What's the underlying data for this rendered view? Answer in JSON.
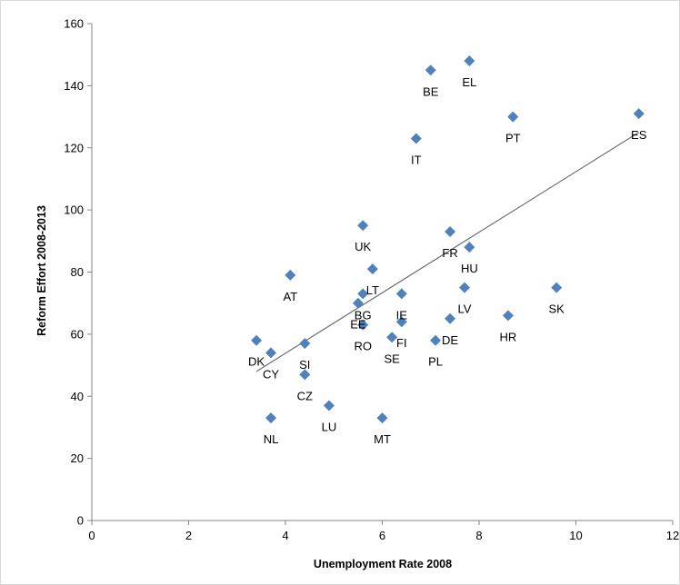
{
  "chart_data": {
    "type": "scatter",
    "title": "",
    "xlabel": "Unemployment Rate 2008",
    "ylabel": "Reform Effort 2008-2013",
    "xlim": [
      0,
      12
    ],
    "ylim": [
      0,
      160
    ],
    "x_ticks": [
      0,
      2,
      4,
      6,
      8,
      10,
      12
    ],
    "y_ticks": [
      0,
      20,
      40,
      60,
      80,
      100,
      120,
      140,
      160
    ],
    "grid": false,
    "legend": "none",
    "marker": "diamond",
    "marker_color": "#4f81bd",
    "trendline": {
      "type": "linear",
      "color": "#595959",
      "from": {
        "x": 3.4,
        "y": 48
      },
      "to": {
        "x": 11.3,
        "y": 125
      }
    },
    "points": [
      {
        "label": "BE",
        "x": 7.0,
        "y": 145
      },
      {
        "label": "EL",
        "x": 7.8,
        "y": 148
      },
      {
        "label": "PT",
        "x": 8.7,
        "y": 130
      },
      {
        "label": "ES",
        "x": 11.3,
        "y": 131
      },
      {
        "label": "IT",
        "x": 6.7,
        "y": 123
      },
      {
        "label": "UK",
        "x": 5.6,
        "y": 95
      },
      {
        "label": "FR",
        "x": 7.4,
        "y": 93
      },
      {
        "label": "HU",
        "x": 7.8,
        "y": 88
      },
      {
        "label": "AT",
        "x": 4.1,
        "y": 79
      },
      {
        "label": "LT",
        "x": 5.8,
        "y": 81
      },
      {
        "label": "BG",
        "x": 5.6,
        "y": 73
      },
      {
        "label": "IE",
        "x": 6.4,
        "y": 73
      },
      {
        "label": "LV",
        "x": 7.7,
        "y": 75
      },
      {
        "label": "SK",
        "x": 9.6,
        "y": 75
      },
      {
        "label": "EE",
        "x": 5.5,
        "y": 70
      },
      {
        "label": "RO",
        "x": 5.6,
        "y": 63
      },
      {
        "label": "FI",
        "x": 6.4,
        "y": 64
      },
      {
        "label": "DE",
        "x": 7.4,
        "y": 65
      },
      {
        "label": "HR",
        "x": 8.6,
        "y": 66
      },
      {
        "label": "SE",
        "x": 6.2,
        "y": 59
      },
      {
        "label": "PL",
        "x": 7.1,
        "y": 58
      },
      {
        "label": "DK",
        "x": 3.4,
        "y": 58
      },
      {
        "label": "CY",
        "x": 3.7,
        "y": 54
      },
      {
        "label": "SI",
        "x": 4.4,
        "y": 57
      },
      {
        "label": "CZ",
        "x": 4.4,
        "y": 47
      },
      {
        "label": "LU",
        "x": 4.9,
        "y": 37
      },
      {
        "label": "NL",
        "x": 3.7,
        "y": 33
      },
      {
        "label": "MT",
        "x": 6.0,
        "y": 33
      }
    ]
  }
}
